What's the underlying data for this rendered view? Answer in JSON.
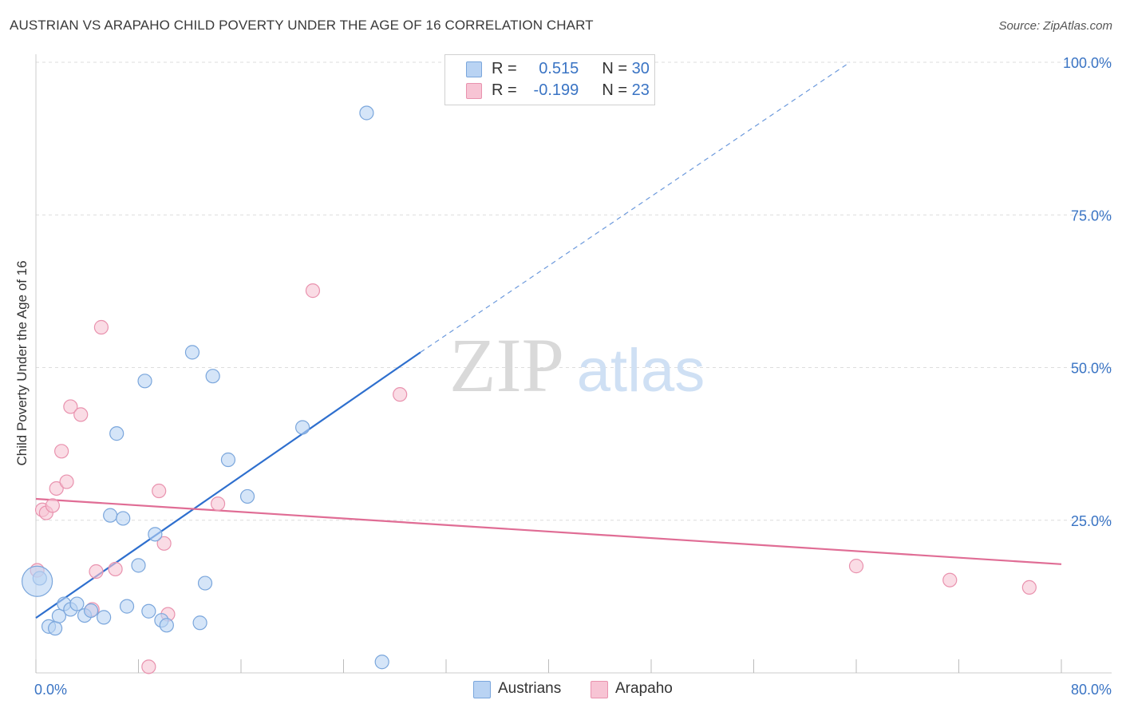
{
  "title": "AUSTRIAN VS ARAPAHO CHILD POVERTY UNDER THE AGE OF 16 CORRELATION CHART",
  "source": "Source: ZipAtlas.com",
  "watermark": {
    "zip": "ZIP",
    "atlas": "atlas"
  },
  "legend": {
    "austrians": {
      "r_label": "R =",
      "r_value": "0.515",
      "n_label": "N =",
      "n_value": "30"
    },
    "arapaho": {
      "r_label": "R =",
      "r_value": "-0.199",
      "n_label": "N =",
      "n_value": "23"
    }
  },
  "bottom_legend": {
    "austrians": "Austrians",
    "arapaho": "Arapaho"
  },
  "colors": {
    "austrians_fill": "#b9d3f3",
    "austrians_stroke": "#7aa6dc",
    "austrians_line": "#2e6fce",
    "arapaho_fill": "#f7c4d4",
    "arapaho_stroke": "#e992ae",
    "arapaho_line": "#e06d95",
    "tick_label": "#3a74c4",
    "grid": "#dddddd"
  },
  "chart_data": {
    "type": "scatter",
    "title": "AUSTRIAN VS ARAPAHO CHILD POVERTY UNDER THE AGE OF 16 CORRELATION CHART",
    "xlabel": "",
    "ylabel": "Child Poverty Under the Age of 16",
    "xlim": [
      0,
      80
    ],
    "ylim": [
      0,
      100
    ],
    "x_tick_labels": [
      "0.0%",
      "80.0%"
    ],
    "y_ticks": [
      25,
      50,
      75,
      100
    ],
    "y_tick_labels": [
      "25.0%",
      "50.0%",
      "75.0%",
      "100.0%"
    ],
    "grid": true,
    "series": [
      {
        "name": "Austrians",
        "points": [
          [
            0.3,
            15.5
          ],
          [
            1.0,
            7.6
          ],
          [
            1.5,
            7.3
          ],
          [
            1.8,
            9.3
          ],
          [
            2.2,
            11.3
          ],
          [
            2.7,
            10.4
          ],
          [
            3.2,
            11.3
          ],
          [
            3.8,
            9.4
          ],
          [
            4.3,
            10.2
          ],
          [
            5.3,
            9.1
          ],
          [
            5.8,
            25.8
          ],
          [
            6.3,
            39.2
          ],
          [
            6.8,
            25.3
          ],
          [
            7.1,
            10.9
          ],
          [
            8.0,
            17.6
          ],
          [
            8.5,
            47.8
          ],
          [
            8.8,
            10.1
          ],
          [
            9.3,
            22.7
          ],
          [
            9.8,
            8.6
          ],
          [
            10.2,
            7.8
          ],
          [
            12.2,
            52.5
          ],
          [
            12.8,
            8.2
          ],
          [
            13.2,
            14.7
          ],
          [
            13.8,
            48.6
          ],
          [
            15.0,
            34.9
          ],
          [
            16.5,
            28.9
          ],
          [
            20.8,
            40.2
          ],
          [
            25.8,
            91.7
          ],
          [
            27.0,
            1.8
          ],
          [
            0.1,
            15.0
          ]
        ],
        "trend": {
          "x": [
            0,
            30
          ],
          "y": [
            9.0,
            52.5
          ],
          "dashed_extension_to": [
            63.5,
            100
          ]
        }
      },
      {
        "name": "Arapaho",
        "points": [
          [
            0.1,
            16.8
          ],
          [
            0.5,
            26.7
          ],
          [
            0.8,
            26.2
          ],
          [
            1.3,
            27.4
          ],
          [
            1.6,
            30.2
          ],
          [
            2.0,
            36.3
          ],
          [
            2.4,
            31.3
          ],
          [
            2.7,
            43.6
          ],
          [
            3.5,
            42.3
          ],
          [
            4.4,
            10.4
          ],
          [
            4.7,
            16.6
          ],
          [
            5.1,
            56.6
          ],
          [
            6.2,
            17.0
          ],
          [
            8.8,
            1.0
          ],
          [
            9.6,
            29.8
          ],
          [
            10.0,
            21.2
          ],
          [
            10.3,
            9.6
          ],
          [
            14.2,
            27.7
          ],
          [
            21.6,
            62.6
          ],
          [
            28.4,
            45.6
          ],
          [
            64.0,
            17.5
          ],
          [
            71.3,
            15.2
          ],
          [
            77.5,
            14.0
          ]
        ],
        "trend": {
          "x": [
            0,
            80
          ],
          "y": [
            28.5,
            17.8
          ]
        }
      }
    ]
  }
}
